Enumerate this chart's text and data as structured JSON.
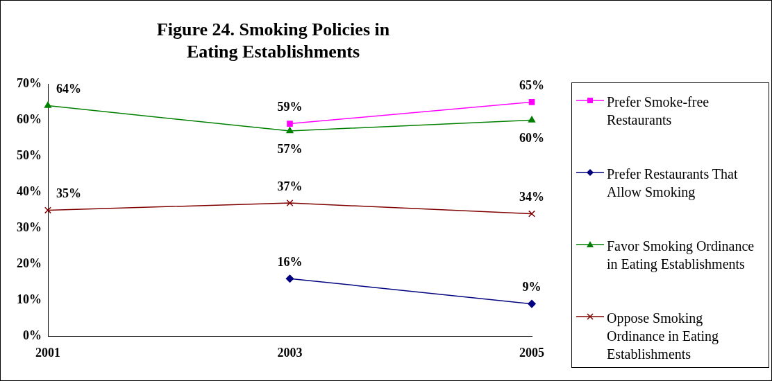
{
  "chart_data": {
    "type": "line",
    "title": "Figure 24. Smoking Policies in Eating Establishments",
    "categories": [
      "2001",
      "2003",
      "2005"
    ],
    "series": [
      {
        "name": "Prefer Smoke-free Restaurants",
        "color": "#ff00ff",
        "marker": "square",
        "values": [
          null,
          59,
          65
        ],
        "value_labels": [
          null,
          "59%",
          "65%"
        ]
      },
      {
        "name": "Prefer Restaurants That Allow Smoking",
        "color": "#000080",
        "marker": "diamond",
        "values": [
          null,
          16,
          9
        ],
        "value_labels": [
          null,
          "16%",
          "9%"
        ]
      },
      {
        "name": "Favor Smoking Ordinance in Eating Establishments",
        "color": "#008000",
        "marker": "triangle",
        "values": [
          64,
          57,
          60
        ],
        "value_labels": [
          "64%",
          "57%",
          "60%"
        ]
      },
      {
        "name": "Oppose Smoking Ordinance in Eating Establishments",
        "color": "#800000",
        "marker": "cross",
        "values": [
          35,
          37,
          34
        ],
        "value_labels": [
          "35%",
          "37%",
          "34%"
        ]
      }
    ],
    "ylim": [
      0,
      70
    ],
    "yticks": [
      {
        "value": 0,
        "label": "0%"
      },
      {
        "value": 10,
        "label": "10%"
      },
      {
        "value": 20,
        "label": "20%"
      },
      {
        "value": 30,
        "label": "30%"
      },
      {
        "value": 40,
        "label": "40%"
      },
      {
        "value": 50,
        "label": "50%"
      },
      {
        "value": 60,
        "label": "60%"
      },
      {
        "value": 70,
        "label": "70%"
      }
    ],
    "grid": false,
    "legend": "right",
    "line_style": "solid"
  }
}
